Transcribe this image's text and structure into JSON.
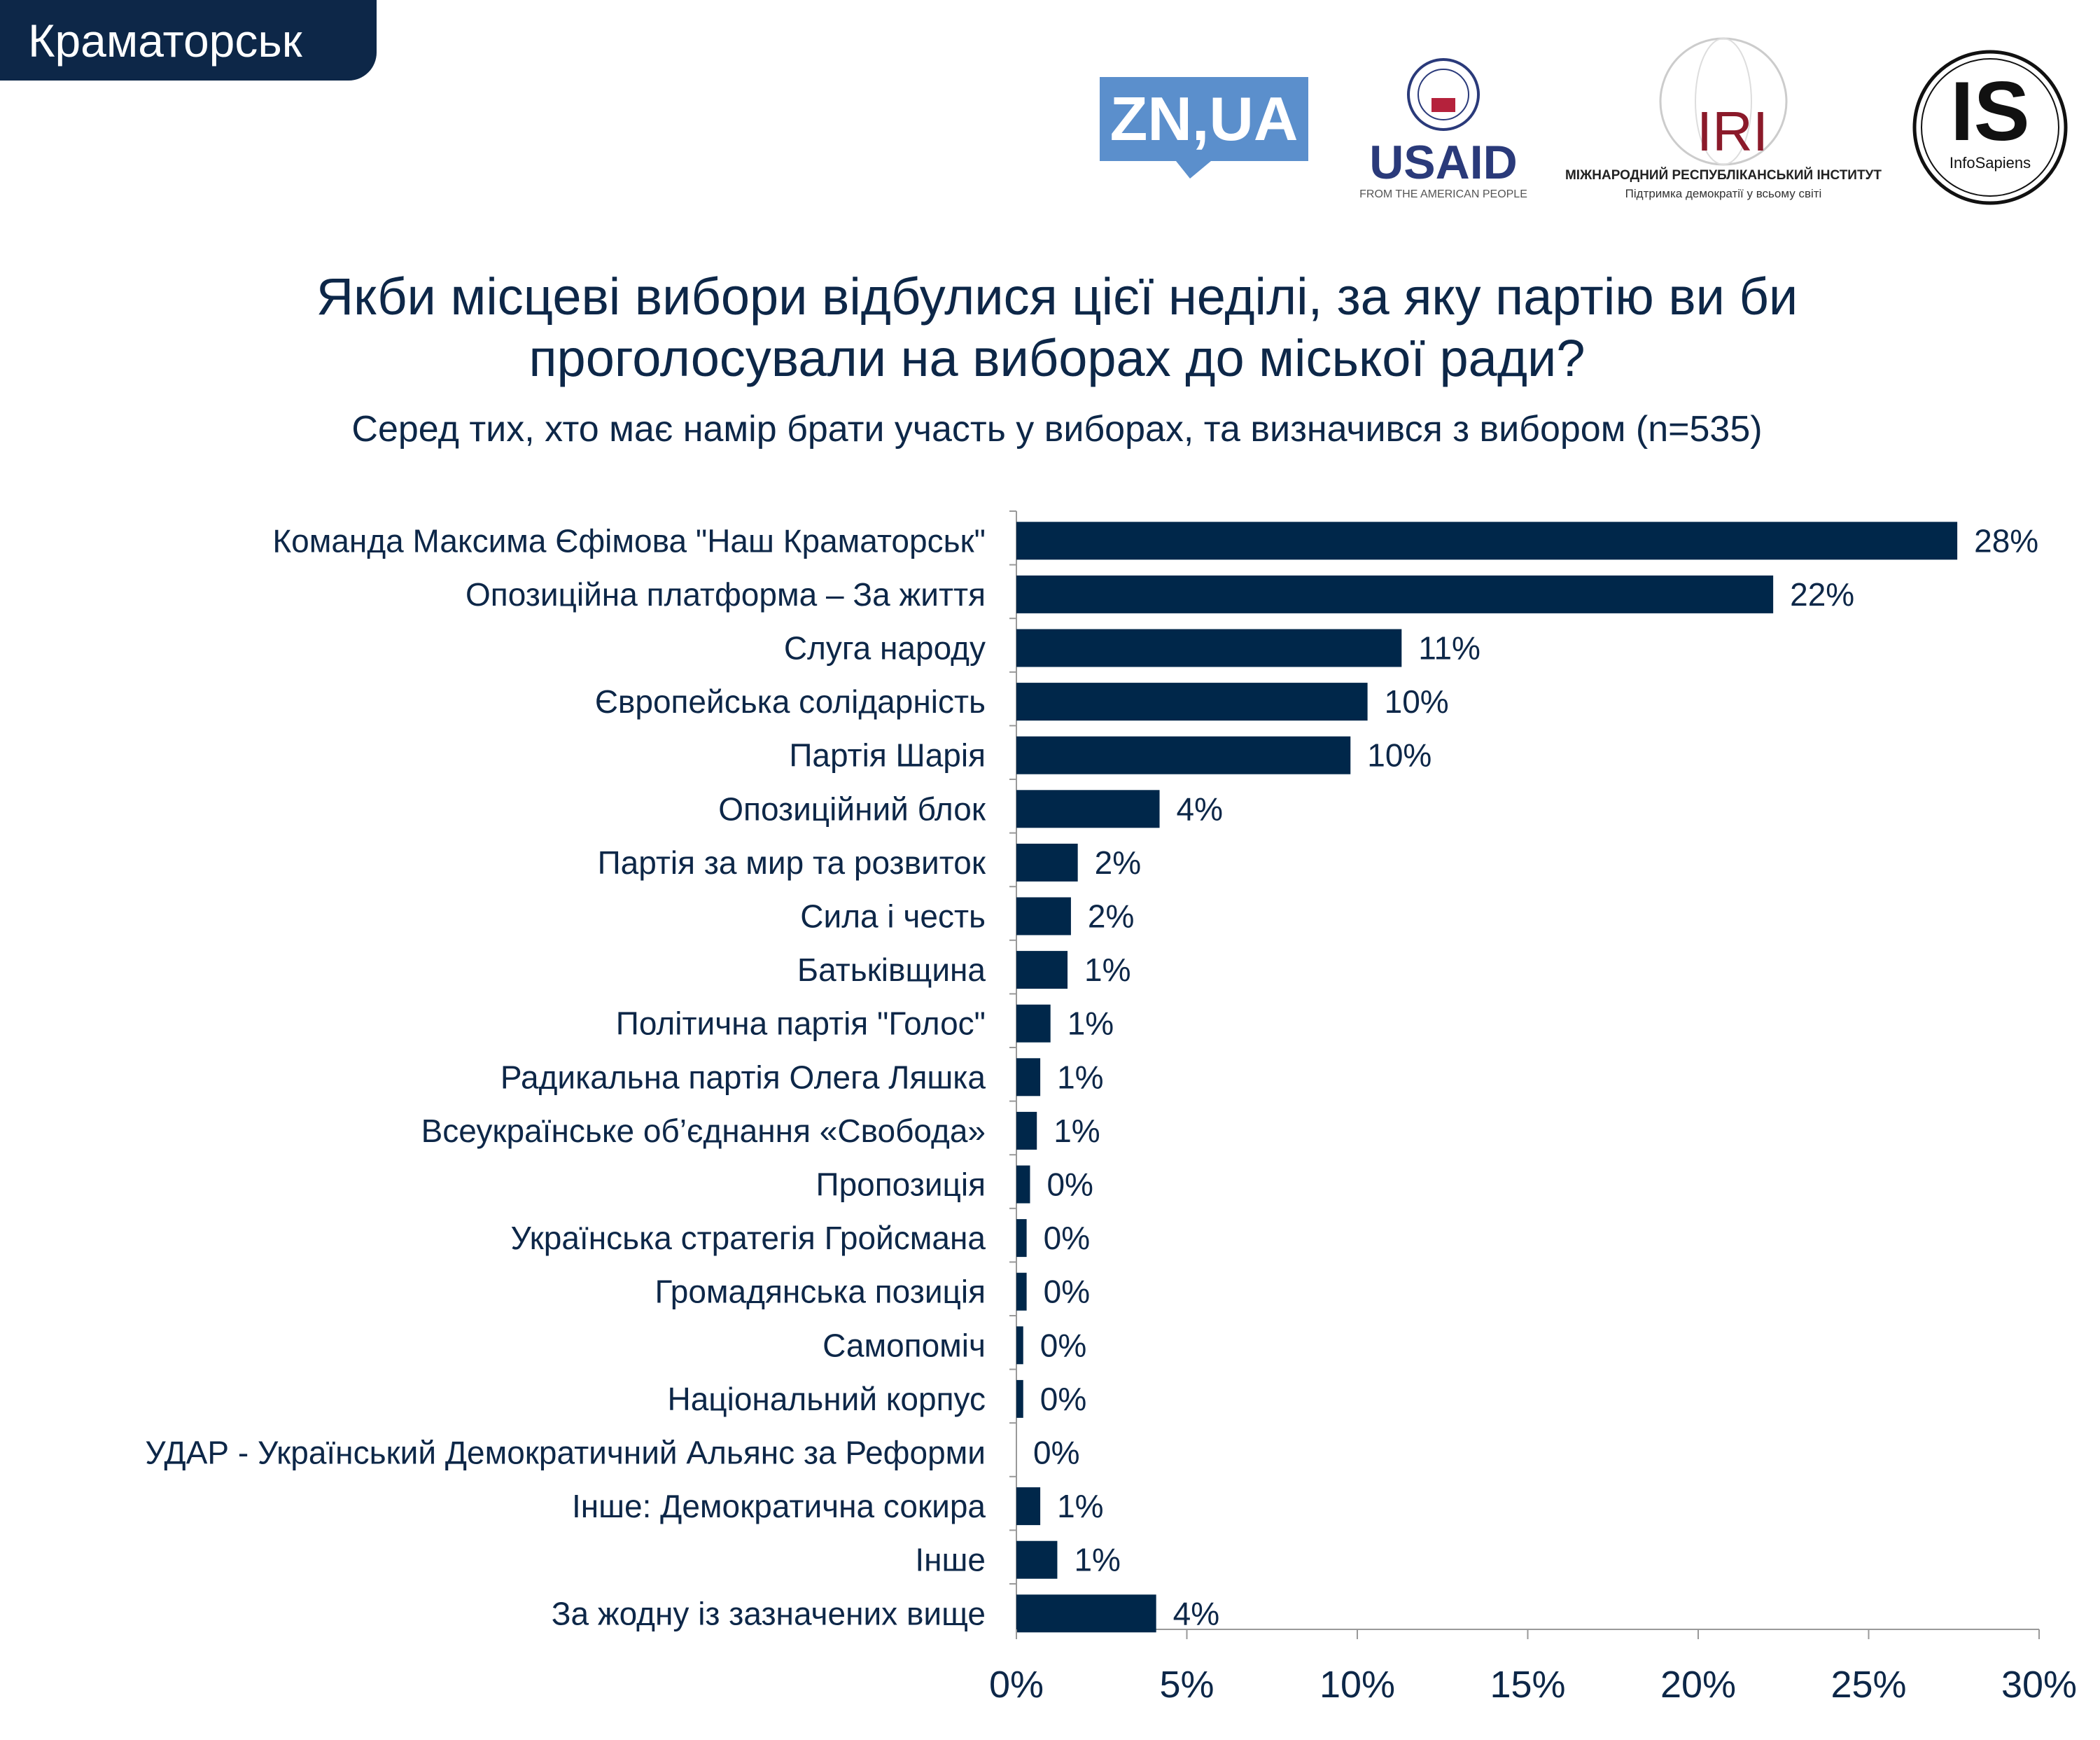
{
  "header": {
    "city": "Краматорськ"
  },
  "logos": {
    "znua": "ZN,UA",
    "usaid": "USAID",
    "usaid_tagline": "FROM THE AMERICAN PEOPLE",
    "iri": "IRI",
    "iri_name": "МІЖНАРОДНИЙ РЕСПУБЛІКАНСЬКИЙ ІНСТИТУТ",
    "iri_tagline": "Підтримка демократії у всьому світі",
    "is": "IS",
    "is_name": "InfoSapiens"
  },
  "colors": {
    "bar": "#00274a",
    "text": "#0d2748",
    "znua": "#5b8fcc",
    "usaid_blue": "#2a3a7a",
    "usaid_red": "#b5223c",
    "iri_red": "#8b1a2a"
  },
  "chart_data": {
    "type": "bar",
    "orientation": "horizontal",
    "title": "Якби місцеві вибори відбулися цієї неділі, за яку партію ви би проголосували на виборах до міської ради?",
    "subtitle": "Серед тих, хто має намір брати участь у виборах, та визначився з вибором (n=535)",
    "categories": [
      "Команда Максима Єфімова \"Наш Краматорськ\"",
      "Опозиційна платформа – За життя",
      "Слуга народу",
      "Європейська солідарність",
      "Партія Шарія",
      "Опозиційний блок",
      "Партія за мир та розвиток",
      "Сила і честь",
      "Батьківщина",
      "Політична партія \"Голос\"",
      "Радикальна партія Олега Ляшка",
      "Всеукраїнське об’єднання «Свобода»",
      "Пропозиція",
      "Українська стратегія Гройсмана",
      "Громадянська позиція",
      "Самопоміч",
      "Національний корпус",
      "УДАР - Український Демократичний Альянс за Реформи",
      "Інше: Демократична сокира",
      "Інше",
      "За жодну із зазначених вище"
    ],
    "values": [
      27.6,
      22.2,
      11.3,
      10.3,
      9.8,
      4.2,
      1.8,
      1.6,
      1.5,
      1.0,
      0.7,
      0.6,
      0.4,
      0.3,
      0.3,
      0.2,
      0.2,
      0.0,
      0.7,
      1.2,
      4.1
    ],
    "labels": [
      "28%",
      "22%",
      "11%",
      "10%",
      "10%",
      "4%",
      "2%",
      "2%",
      "1%",
      "1%",
      "1%",
      "1%",
      "0%",
      "0%",
      "0%",
      "0%",
      "0%",
      "0%",
      "1%",
      "1%",
      "4%"
    ],
    "xlim": [
      0,
      30
    ],
    "xticks": [
      0,
      5,
      10,
      15,
      20,
      25,
      30
    ],
    "xtick_labels": [
      "0%",
      "5%",
      "10%",
      "15%",
      "20%",
      "25%",
      "30%"
    ],
    "grid": false,
    "legend": "none"
  }
}
